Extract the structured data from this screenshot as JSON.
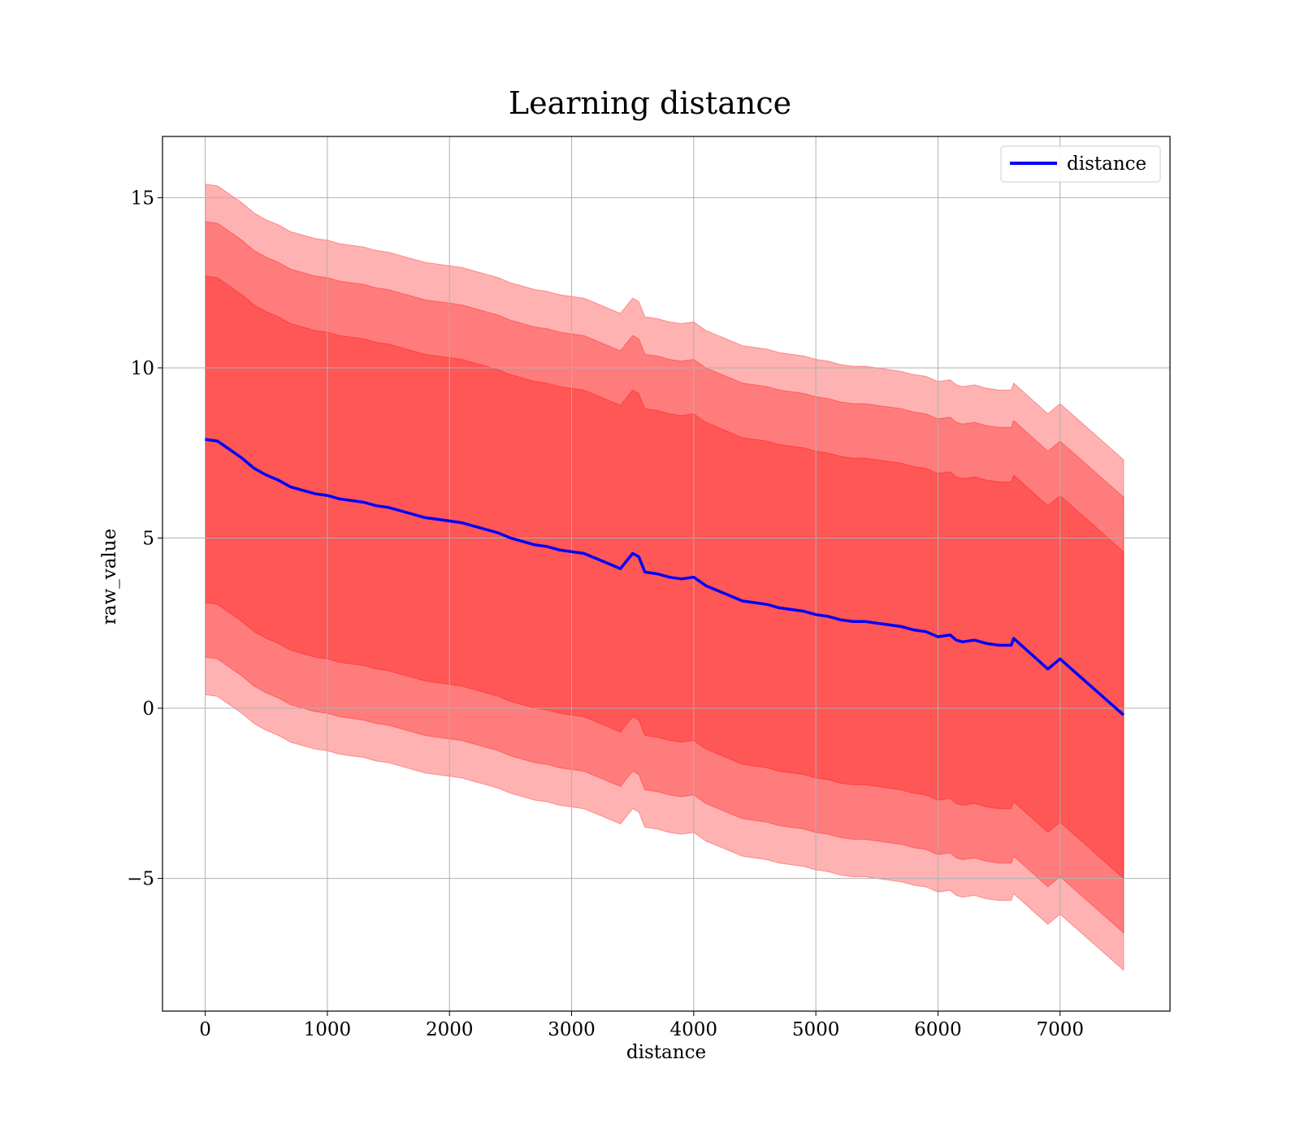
{
  "chart_data": {
    "type": "line",
    "title": "Learning distance",
    "xlabel": "distance",
    "ylabel": "raw_value",
    "xlim": [
      -350,
      7900
    ],
    "ylim": [
      -8.9,
      16.8
    ],
    "x_ticks": [
      0,
      1000,
      2000,
      3000,
      4000,
      5000,
      6000,
      7000
    ],
    "x_tick_labels": [
      "0",
      "1000",
      "2000",
      "3000",
      "4000",
      "5000",
      "6000",
      "7000"
    ],
    "y_ticks": [
      -5,
      0,
      5,
      10,
      15
    ],
    "y_tick_labels": [
      "−5",
      "0",
      "5",
      "10",
      "15"
    ],
    "grid": true,
    "legend": {
      "position": "top-right",
      "entries": [
        "distance"
      ]
    },
    "colors": {
      "line": "#0000ff",
      "band": "#ff0000",
      "band_alpha": 0.3,
      "grid": "#b0b0b0"
    },
    "band_offsets": [
      4.8,
      6.4,
      7.5
    ],
    "series": [
      {
        "name": "distance",
        "x": [
          0,
          100,
          200,
          300,
          400,
          500,
          600,
          700,
          800,
          900,
          1000,
          1100,
          1200,
          1300,
          1400,
          1500,
          1600,
          1700,
          1800,
          1900,
          2000,
          2100,
          2200,
          2300,
          2400,
          2500,
          2600,
          2700,
          2800,
          2900,
          3000,
          3100,
          3200,
          3300,
          3400,
          3500,
          3550,
          3600,
          3700,
          3800,
          3900,
          4000,
          4100,
          4200,
          4300,
          4400,
          4500,
          4600,
          4700,
          4800,
          4900,
          5000,
          5100,
          5200,
          5300,
          5400,
          5500,
          5600,
          5700,
          5800,
          5900,
          6000,
          6100,
          6150,
          6200,
          6300,
          6400,
          6500,
          6600,
          6620,
          6900,
          7000,
          7520
        ],
        "y": [
          7.9,
          7.85,
          7.6,
          7.35,
          7.05,
          6.85,
          6.7,
          6.5,
          6.4,
          6.3,
          6.25,
          6.15,
          6.1,
          6.05,
          5.95,
          5.9,
          5.8,
          5.7,
          5.6,
          5.55,
          5.5,
          5.45,
          5.35,
          5.25,
          5.15,
          5.0,
          4.9,
          4.8,
          4.75,
          4.65,
          4.6,
          4.55,
          4.4,
          4.25,
          4.1,
          4.55,
          4.45,
          4.0,
          3.95,
          3.85,
          3.8,
          3.85,
          3.6,
          3.45,
          3.3,
          3.15,
          3.1,
          3.05,
          2.95,
          2.9,
          2.85,
          2.75,
          2.7,
          2.6,
          2.55,
          2.55,
          2.5,
          2.45,
          2.4,
          2.3,
          2.25,
          2.1,
          2.15,
          2.0,
          1.95,
          2.0,
          1.9,
          1.85,
          1.85,
          2.05,
          1.15,
          1.45,
          -0.2
        ]
      }
    ]
  }
}
